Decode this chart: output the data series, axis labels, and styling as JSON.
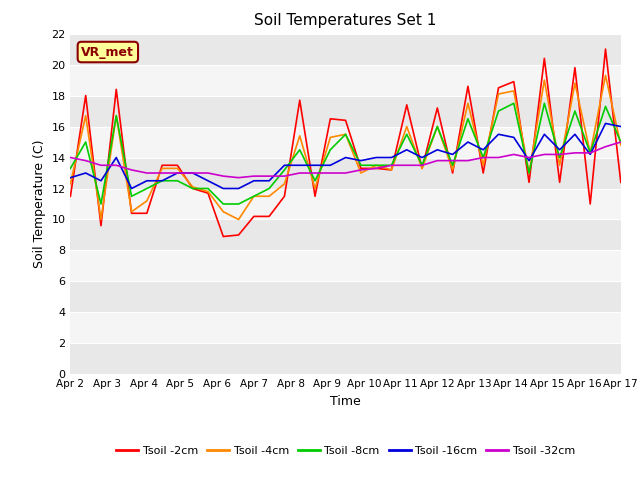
{
  "title": "Soil Temperatures Set 1",
  "xlabel": "Time",
  "ylabel": "Soil Temperature (C)",
  "ylim": [
    0,
    22
  ],
  "yticks": [
    0,
    2,
    4,
    6,
    8,
    10,
    12,
    14,
    16,
    18,
    20,
    22
  ],
  "x_labels": [
    "Apr 2",
    "Apr 3",
    "Apr 4",
    "Apr 5",
    "Apr 6",
    "Apr 7",
    "Apr 8",
    "Apr 9",
    "Apr 10",
    "Apr 11",
    "Apr 12",
    "Apr 13",
    "Apr 14",
    "Apr 15",
    "Apr 16",
    "Apr 17"
  ],
  "annotation_text": "VR_met",
  "colors": {
    "Tsoil -2cm": "#ff0000",
    "Tsoil -4cm": "#ff8800",
    "Tsoil -8cm": "#00cc00",
    "Tsoil -16cm": "#0000dd",
    "Tsoil -32cm": "#cc00cc"
  },
  "fig_bg": "#ffffff",
  "plot_bg_light": "#f5f5f5",
  "plot_bg_dark": "#e8e8e8",
  "series": {
    "Tsoil -2cm": [
      11.5,
      18.0,
      9.6,
      18.4,
      10.4,
      10.4,
      13.5,
      13.5,
      12.0,
      11.7,
      8.9,
      9.0,
      10.2,
      10.2,
      11.5,
      17.7,
      11.5,
      16.5,
      16.4,
      13.3,
      13.3,
      13.2,
      17.4,
      13.3,
      17.2,
      13.0,
      18.6,
      13.0,
      18.5,
      18.9,
      12.4,
      20.4,
      12.4,
      19.8,
      11.0,
      21.0,
      12.4
    ],
    "Tsoil -4cm": [
      12.3,
      16.7,
      10.0,
      16.7,
      10.5,
      11.2,
      13.3,
      13.3,
      12.1,
      11.8,
      10.5,
      10.0,
      11.5,
      11.5,
      12.3,
      15.4,
      12.0,
      15.3,
      15.5,
      13.0,
      13.5,
      13.2,
      16.0,
      13.3,
      16.0,
      13.2,
      17.5,
      13.5,
      18.1,
      18.3,
      13.0,
      19.0,
      13.5,
      18.8,
      14.3,
      19.3,
      14.8
    ],
    "Tsoil -8cm": [
      13.3,
      15.0,
      11.0,
      16.7,
      11.5,
      12.0,
      12.5,
      12.5,
      12.0,
      12.0,
      11.0,
      11.0,
      11.5,
      12.0,
      13.2,
      14.5,
      12.5,
      14.5,
      15.5,
      13.5,
      13.5,
      13.5,
      15.5,
      13.5,
      16.0,
      13.5,
      16.5,
      14.0,
      17.0,
      17.5,
      13.0,
      17.5,
      14.0,
      17.0,
      14.3,
      17.3,
      15.0
    ],
    "Tsoil -16cm": [
      12.7,
      13.0,
      12.5,
      14.0,
      12.0,
      12.5,
      12.5,
      13.0,
      13.0,
      12.5,
      12.0,
      12.0,
      12.5,
      12.5,
      13.5,
      13.5,
      13.5,
      13.5,
      14.0,
      13.8,
      14.0,
      14.0,
      14.5,
      14.0,
      14.5,
      14.2,
      15.0,
      14.5,
      15.5,
      15.3,
      13.8,
      15.5,
      14.5,
      15.5,
      14.2,
      16.2,
      16.0
    ],
    "Tsoil -32cm": [
      14.0,
      13.8,
      13.5,
      13.5,
      13.2,
      13.0,
      13.0,
      13.0,
      13.0,
      13.0,
      12.8,
      12.7,
      12.8,
      12.8,
      12.8,
      13.0,
      13.0,
      13.0,
      13.0,
      13.2,
      13.3,
      13.5,
      13.5,
      13.5,
      13.8,
      13.8,
      13.8,
      14.0,
      14.0,
      14.2,
      14.0,
      14.2,
      14.2,
      14.3,
      14.3,
      14.7,
      15.0
    ]
  }
}
